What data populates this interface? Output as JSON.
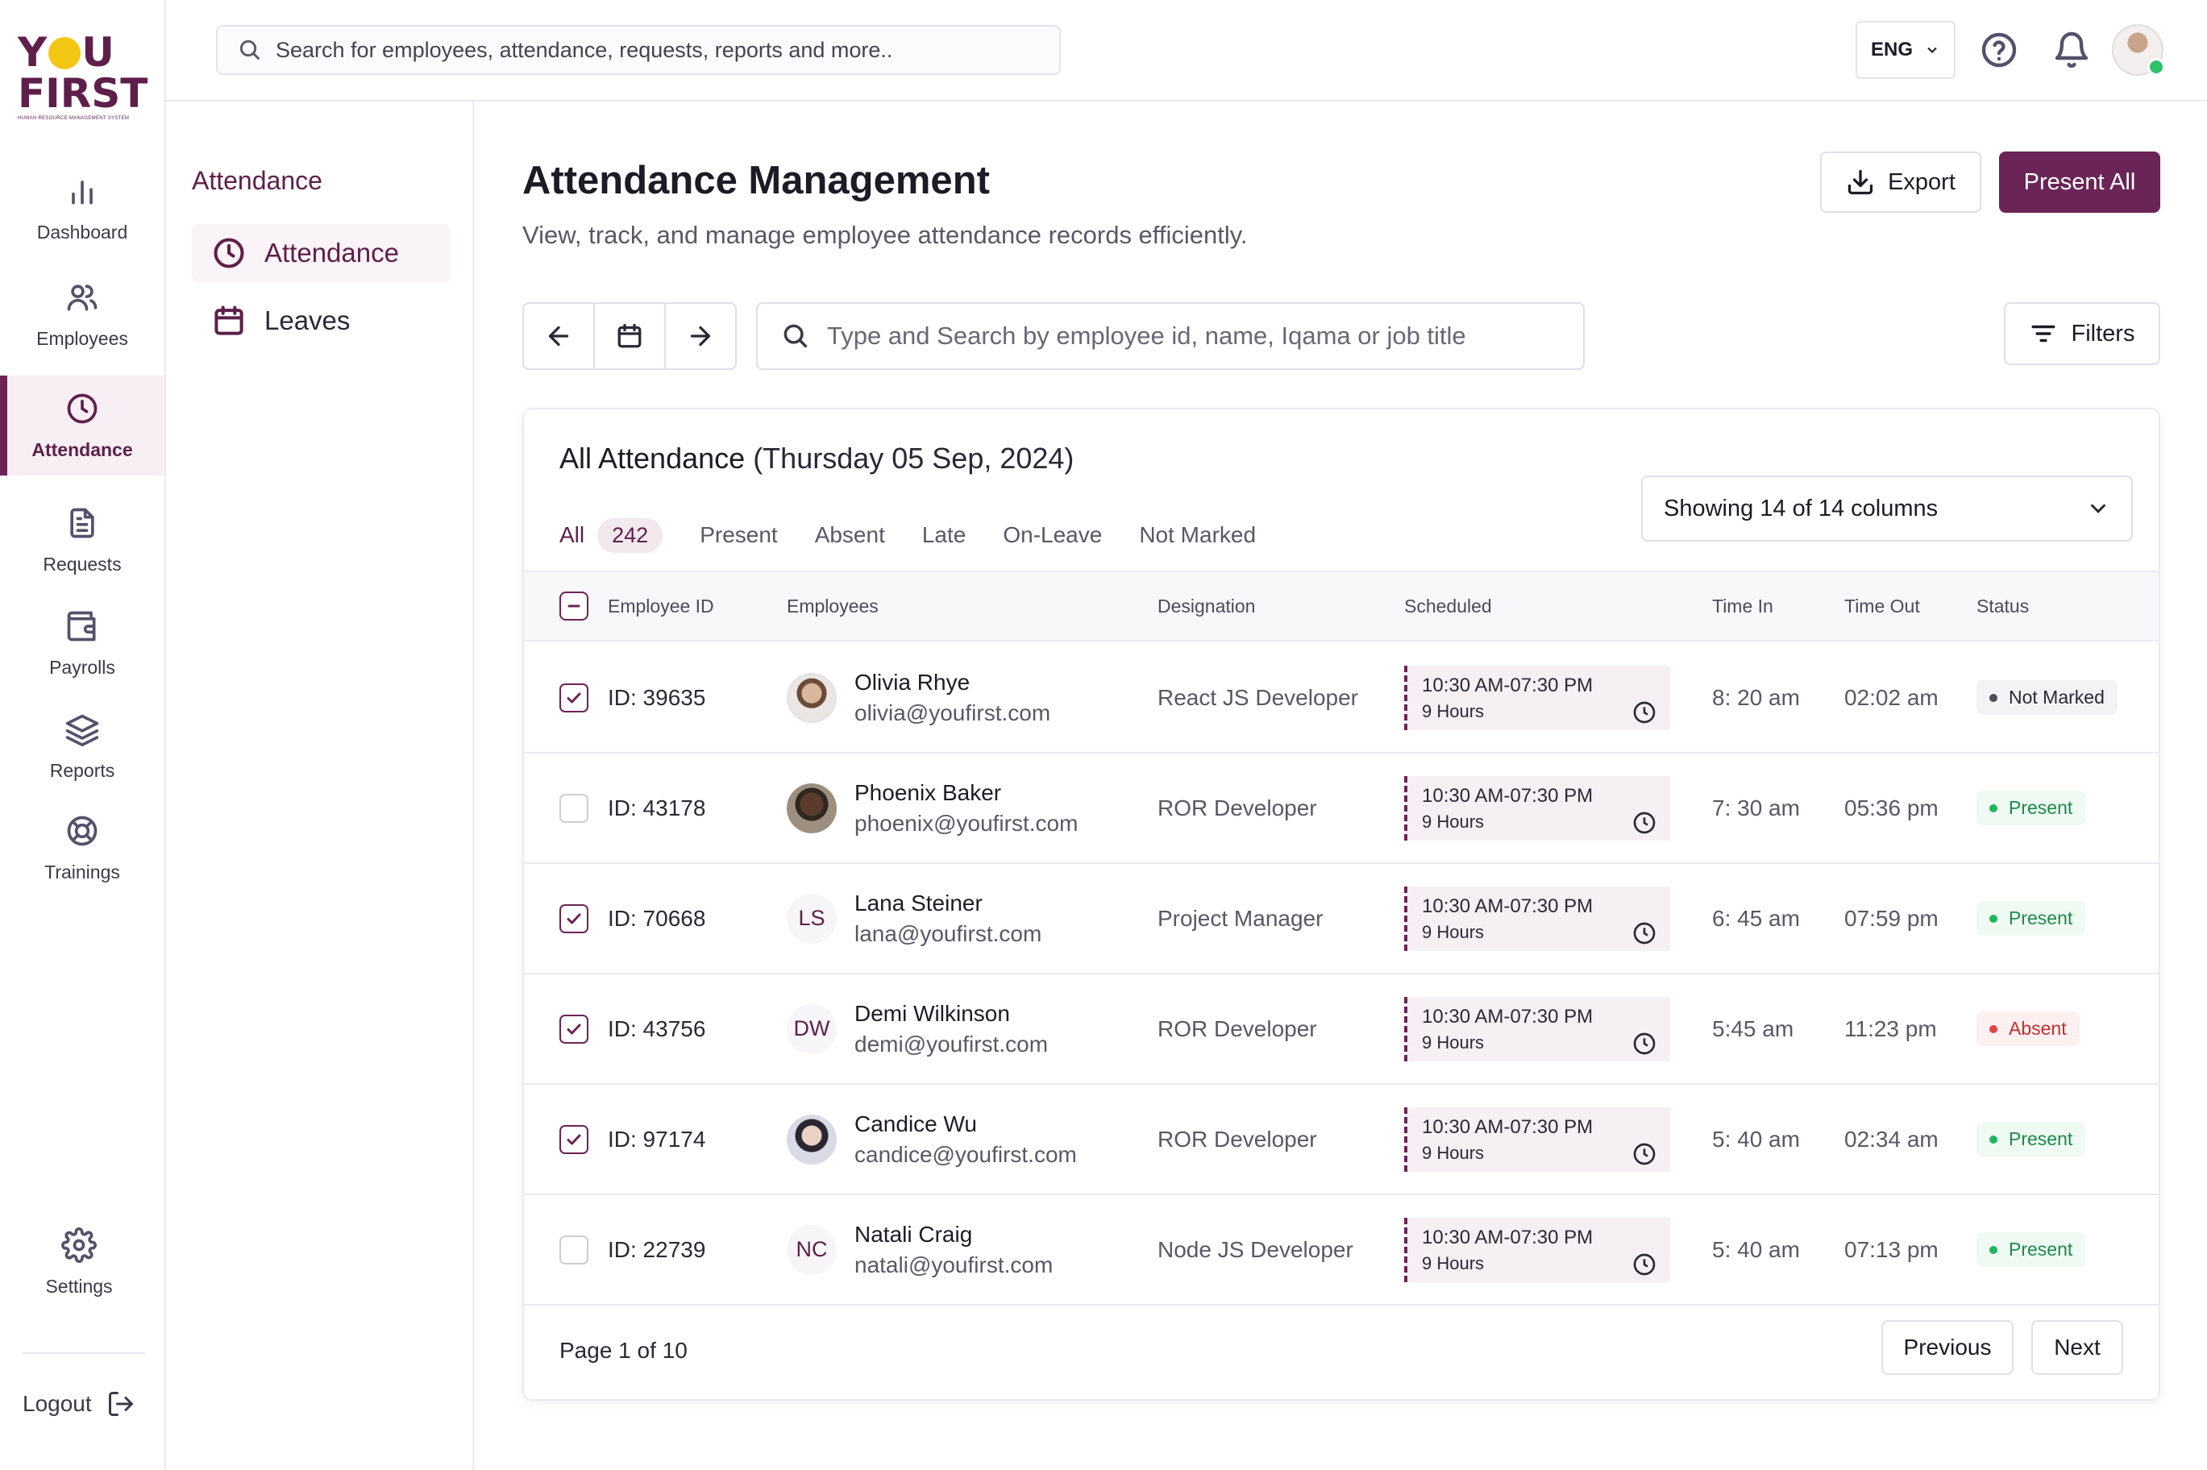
{
  "brand": {
    "logo_line1": "Y",
    "logo_line1_end": "U",
    "logo_line2": "FIRST",
    "logo_tagline": "HUMAN RESOURCE MANAGEMENT SYSTEM",
    "primary_color": "#6b2456",
    "accent_color": "#f3c614"
  },
  "rail": {
    "items": [
      {
        "label": "Dashboard",
        "icon": "bar-chart-icon",
        "active": false
      },
      {
        "label": "Employees",
        "icon": "users-icon",
        "active": false
      },
      {
        "label": "Attendance",
        "icon": "clock-icon",
        "active": true
      },
      {
        "label": "Requests",
        "icon": "document-icon",
        "active": false
      },
      {
        "label": "Payrolls",
        "icon": "wallet-icon",
        "active": false
      },
      {
        "label": "Reports",
        "icon": "layers-icon",
        "active": false
      },
      {
        "label": "Trainings",
        "icon": "lifebuoy-icon",
        "active": false
      }
    ],
    "settings_label": "Settings",
    "logout_label": "Logout"
  },
  "topbar": {
    "search_placeholder": "Search for employees, attendance, requests, reports and more..",
    "language": "ENG"
  },
  "subnav": {
    "title": "Attendance",
    "items": [
      {
        "label": "Attendance",
        "icon": "clock-icon",
        "active": true
      },
      {
        "label": "Leaves",
        "icon": "calendar-icon",
        "active": false
      }
    ]
  },
  "header": {
    "title": "Attendance Management",
    "subtitle": "View, track, and manage employee attendance records efficiently.",
    "export_label": "Export",
    "present_all_label": "Present All"
  },
  "toolbar": {
    "search_placeholder": "Type and Search by employee id, name, Iqama or job title",
    "filters_label": "Filters"
  },
  "card": {
    "title": "All Attendance",
    "date": "(Thursday 05 Sep, 2024)",
    "tabs": [
      {
        "label": "All",
        "count": "242",
        "active": true
      },
      {
        "label": "Present"
      },
      {
        "label": "Absent"
      },
      {
        "label": "Late"
      },
      {
        "label": "On-Leave"
      },
      {
        "label": "Not Marked"
      }
    ],
    "columns_select": "Showing 14 of 14 columns",
    "headers": {
      "employee_id": "Employee ID",
      "employees": "Employees",
      "designation": "Designation",
      "scheduled": "Scheduled",
      "time_in": "Time In",
      "time_out": "Time Out",
      "status": "Status"
    },
    "rows": [
      {
        "checked": true,
        "id": "ID: 39635",
        "name": "Olivia Rhye",
        "email": "olivia@youfirst.com",
        "avatar": "photo",
        "initials": "",
        "designation": "React JS Developer",
        "schedule": "10:30 AM-07:30 PM",
        "hours": "9 Hours",
        "time_in": "8: 20 am",
        "time_out": "02:02 am",
        "status": "Not Marked",
        "status_kind": "notmarked"
      },
      {
        "checked": false,
        "id": "ID: 43178",
        "name": "Phoenix Baker",
        "email": "phoenix@youfirst.com",
        "avatar": "photo",
        "initials": "",
        "designation": "ROR Developer",
        "schedule": "10:30 AM-07:30 PM",
        "hours": "9 Hours",
        "time_in": "7: 30 am",
        "time_out": "05:36 pm",
        "status": "Present",
        "status_kind": "present"
      },
      {
        "checked": true,
        "id": "ID: 70668",
        "name": "Lana Steiner",
        "email": "lana@youfirst.com",
        "avatar": "initials",
        "initials": "LS",
        "designation": "Project Manager",
        "schedule": "10:30 AM-07:30 PM",
        "hours": "9 Hours",
        "time_in": "6: 45 am",
        "time_out": "07:59 pm",
        "status": "Present",
        "status_kind": "present"
      },
      {
        "checked": true,
        "id": "ID: 43756",
        "name": "Demi Wilkinson",
        "email": "demi@youfirst.com",
        "avatar": "initials",
        "initials": "DW",
        "designation": "ROR Developer",
        "schedule": "10:30 AM-07:30 PM",
        "hours": "9 Hours",
        "time_in": "5:45 am",
        "time_out": "11:23 pm",
        "status": "Absent",
        "status_kind": "absent"
      },
      {
        "checked": true,
        "id": "ID: 97174",
        "name": "Candice Wu",
        "email": "candice@youfirst.com",
        "avatar": "photo",
        "initials": "",
        "designation": "ROR Developer",
        "schedule": "10:30 AM-07:30 PM",
        "hours": "9 Hours",
        "time_in": "5: 40 am",
        "time_out": "02:34 am",
        "status": "Present",
        "status_kind": "present"
      },
      {
        "checked": false,
        "id": "ID: 22739",
        "name": "Natali Craig",
        "email": "natali@youfirst.com",
        "avatar": "initials",
        "initials": "NC",
        "designation": "Node JS Developer",
        "schedule": "10:30 AM-07:30 PM",
        "hours": "9 Hours",
        "time_in": "5: 40 am",
        "time_out": "07:13 pm",
        "status": "Present",
        "status_kind": "present"
      }
    ],
    "pagination": {
      "info": "Page 1 of 10",
      "previous_label": "Previous",
      "next_label": "Next"
    }
  }
}
